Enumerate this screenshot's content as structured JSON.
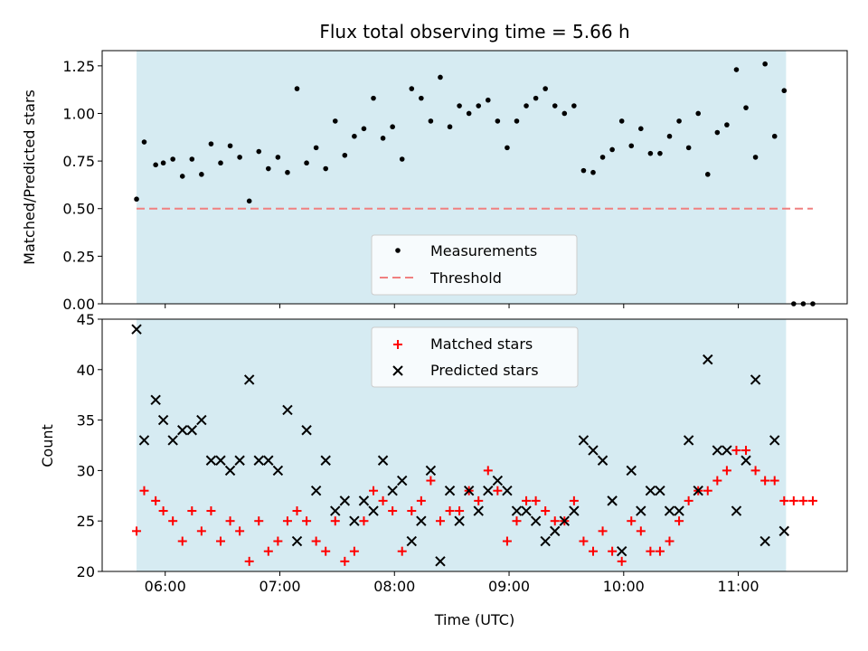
{
  "chart_data": [
    {
      "type": "scatter",
      "title": "Flux total observing time = 5.66 h",
      "xlabel": "",
      "ylabel": "Matched/Predicted stars",
      "ylim": [
        0,
        1.33
      ],
      "yticks": [
        "0.00",
        "0.25",
        "0.50",
        "0.75",
        "1.00",
        "1.25"
      ],
      "xlim": [
        "05:27",
        "11:57"
      ],
      "shaded_interval": [
        "05:45",
        "11:25"
      ],
      "shade_color": "#add8e6",
      "legend_position": "lower-center",
      "series": [
        {
          "name": "Measurements",
          "marker": "dot",
          "color": "#000000",
          "points": [
            [
              "05:45",
              0.55
            ],
            [
              "05:49",
              0.85
            ],
            [
              "05:55",
              0.73
            ],
            [
              "05:59",
              0.74
            ],
            [
              "06:04",
              0.76
            ],
            [
              "06:09",
              0.67
            ],
            [
              "06:14",
              0.76
            ],
            [
              "06:19",
              0.68
            ],
            [
              "06:24",
              0.84
            ],
            [
              "06:29",
              0.74
            ],
            [
              "06:34",
              0.83
            ],
            [
              "06:39",
              0.77
            ],
            [
              "06:44",
              0.54
            ],
            [
              "06:49",
              0.8
            ],
            [
              "06:54",
              0.71
            ],
            [
              "06:59",
              0.77
            ],
            [
              "07:04",
              0.69
            ],
            [
              "07:09",
              1.13
            ],
            [
              "07:14",
              0.74
            ],
            [
              "07:19",
              0.82
            ],
            [
              "07:24",
              0.71
            ],
            [
              "07:29",
              0.96
            ],
            [
              "07:34",
              0.78
            ],
            [
              "07:39",
              0.88
            ],
            [
              "07:44",
              0.92
            ],
            [
              "07:49",
              1.08
            ],
            [
              "07:54",
              0.87
            ],
            [
              "07:59",
              0.93
            ],
            [
              "08:04",
              0.76
            ],
            [
              "08:09",
              1.13
            ],
            [
              "08:14",
              1.08
            ],
            [
              "08:19",
              0.96
            ],
            [
              "08:24",
              1.19
            ],
            [
              "08:29",
              0.93
            ],
            [
              "08:34",
              1.04
            ],
            [
              "08:39",
              1.0
            ],
            [
              "08:44",
              1.04
            ],
            [
              "08:49",
              1.07
            ],
            [
              "08:54",
              0.96
            ],
            [
              "08:59",
              0.82
            ],
            [
              "09:04",
              0.96
            ],
            [
              "09:09",
              1.04
            ],
            [
              "09:14",
              1.08
            ],
            [
              "09:19",
              1.13
            ],
            [
              "09:24",
              1.04
            ],
            [
              "09:29",
              1.0
            ],
            [
              "09:34",
              1.04
            ],
            [
              "09:39",
              0.7
            ],
            [
              "09:44",
              0.69
            ],
            [
              "09:49",
              0.77
            ],
            [
              "09:54",
              0.81
            ],
            [
              "09:59",
              0.96
            ],
            [
              "10:04",
              0.83
            ],
            [
              "10:09",
              0.92
            ],
            [
              "10:14",
              0.79
            ],
            [
              "10:19",
              0.79
            ],
            [
              "10:24",
              0.88
            ],
            [
              "10:29",
              0.96
            ],
            [
              "10:34",
              0.82
            ],
            [
              "10:39",
              1.0
            ],
            [
              "10:44",
              0.68
            ],
            [
              "10:49",
              0.9
            ],
            [
              "10:54",
              0.94
            ],
            [
              "10:59",
              1.23
            ],
            [
              "11:04",
              1.03
            ],
            [
              "11:09",
              0.77
            ],
            [
              "11:14",
              1.26
            ],
            [
              "11:19",
              0.88
            ],
            [
              "11:24",
              1.12
            ],
            [
              "11:29",
              0.0
            ],
            [
              "11:34",
              0.0
            ],
            [
              "11:39",
              0.0
            ]
          ]
        },
        {
          "name": "Threshold",
          "marker": "dashed-line",
          "color": "#f08080",
          "y": 0.5,
          "x_range": [
            "05:45",
            "11:39"
          ]
        }
      ]
    },
    {
      "type": "scatter",
      "title": "",
      "xlabel": "Time (UTC)",
      "ylabel": "Count",
      "ylim": [
        20,
        45
      ],
      "yticks": [
        "20",
        "25",
        "30",
        "35",
        "40",
        "45"
      ],
      "xticks": [
        "06:00",
        "07:00",
        "08:00",
        "09:00",
        "10:00",
        "11:00"
      ],
      "legend_position": "upper-center",
      "series": [
        {
          "name": "Matched stars",
          "marker": "plus",
          "color": "#ff0000",
          "points": [
            [
              "05:45",
              24
            ],
            [
              "05:49",
              28
            ],
            [
              "05:55",
              27
            ],
            [
              "05:59",
              26
            ],
            [
              "06:04",
              25
            ],
            [
              "06:09",
              23
            ],
            [
              "06:14",
              26
            ],
            [
              "06:19",
              24
            ],
            [
              "06:24",
              26
            ],
            [
              "06:29",
              23
            ],
            [
              "06:34",
              25
            ],
            [
              "06:39",
              24
            ],
            [
              "06:44",
              21
            ],
            [
              "06:49",
              25
            ],
            [
              "06:54",
              22
            ],
            [
              "06:59",
              23
            ],
            [
              "07:04",
              25
            ],
            [
              "07:09",
              26
            ],
            [
              "07:14",
              25
            ],
            [
              "07:19",
              23
            ],
            [
              "07:24",
              22
            ],
            [
              "07:29",
              25
            ],
            [
              "07:34",
              21
            ],
            [
              "07:39",
              22
            ],
            [
              "07:44",
              25
            ],
            [
              "07:49",
              28
            ],
            [
              "07:54",
              27
            ],
            [
              "07:59",
              26
            ],
            [
              "08:04",
              22
            ],
            [
              "08:09",
              26
            ],
            [
              "08:14",
              27
            ],
            [
              "08:19",
              29
            ],
            [
              "08:24",
              25
            ],
            [
              "08:29",
              26
            ],
            [
              "08:34",
              26
            ],
            [
              "08:39",
              28
            ],
            [
              "08:44",
              27
            ],
            [
              "08:49",
              30
            ],
            [
              "08:54",
              28
            ],
            [
              "08:59",
              23
            ],
            [
              "09:04",
              25
            ],
            [
              "09:09",
              27
            ],
            [
              "09:14",
              27
            ],
            [
              "09:19",
              26
            ],
            [
              "09:24",
              25
            ],
            [
              "09:29",
              25
            ],
            [
              "09:34",
              27
            ],
            [
              "09:39",
              23
            ],
            [
              "09:44",
              22
            ],
            [
              "09:49",
              24
            ],
            [
              "09:54",
              22
            ],
            [
              "09:59",
              21
            ],
            [
              "10:04",
              25
            ],
            [
              "10:09",
              24
            ],
            [
              "10:14",
              22
            ],
            [
              "10:19",
              22
            ],
            [
              "10:24",
              23
            ],
            [
              "10:29",
              25
            ],
            [
              "10:34",
              27
            ],
            [
              "10:39",
              28
            ],
            [
              "10:44",
              28
            ],
            [
              "10:49",
              29
            ],
            [
              "10:54",
              30
            ],
            [
              "10:59",
              32
            ],
            [
              "11:04",
              32
            ],
            [
              "11:09",
              30
            ],
            [
              "11:14",
              29
            ],
            [
              "11:19",
              29
            ],
            [
              "11:24",
              27
            ],
            [
              "11:29",
              27
            ],
            [
              "11:34",
              27
            ],
            [
              "11:39",
              27
            ]
          ]
        },
        {
          "name": "Predicted stars",
          "marker": "x",
          "color": "#000000",
          "points": [
            [
              "05:45",
              44
            ],
            [
              "05:49",
              33
            ],
            [
              "05:55",
              37
            ],
            [
              "05:59",
              35
            ],
            [
              "06:04",
              33
            ],
            [
              "06:09",
              34
            ],
            [
              "06:14",
              34
            ],
            [
              "06:19",
              35
            ],
            [
              "06:24",
              31
            ],
            [
              "06:29",
              31
            ],
            [
              "06:34",
              30
            ],
            [
              "06:39",
              31
            ],
            [
              "06:44",
              39
            ],
            [
              "06:49",
              31
            ],
            [
              "06:54",
              31
            ],
            [
              "06:59",
              30
            ],
            [
              "07:04",
              36
            ],
            [
              "07:09",
              23
            ],
            [
              "07:14",
              34
            ],
            [
              "07:19",
              28
            ],
            [
              "07:24",
              31
            ],
            [
              "07:29",
              26
            ],
            [
              "07:34",
              27
            ],
            [
              "07:39",
              25
            ],
            [
              "07:44",
              27
            ],
            [
              "07:49",
              26
            ],
            [
              "07:54",
              31
            ],
            [
              "07:59",
              28
            ],
            [
              "08:04",
              29
            ],
            [
              "08:09",
              23
            ],
            [
              "08:14",
              25
            ],
            [
              "08:19",
              30
            ],
            [
              "08:24",
              21
            ],
            [
              "08:29",
              28
            ],
            [
              "08:34",
              25
            ],
            [
              "08:39",
              28
            ],
            [
              "08:44",
              26
            ],
            [
              "08:49",
              28
            ],
            [
              "08:54",
              29
            ],
            [
              "08:59",
              28
            ],
            [
              "09:04",
              26
            ],
            [
              "09:09",
              26
            ],
            [
              "09:14",
              25
            ],
            [
              "09:19",
              23
            ],
            [
              "09:24",
              24
            ],
            [
              "09:29",
              25
            ],
            [
              "09:34",
              26
            ],
            [
              "09:39",
              33
            ],
            [
              "09:44",
              32
            ],
            [
              "09:49",
              31
            ],
            [
              "09:54",
              27
            ],
            [
              "09:59",
              22
            ],
            [
              "10:04",
              30
            ],
            [
              "10:09",
              26
            ],
            [
              "10:14",
              28
            ],
            [
              "10:19",
              28
            ],
            [
              "10:24",
              26
            ],
            [
              "10:29",
              26
            ],
            [
              "10:34",
              33
            ],
            [
              "10:39",
              28
            ],
            [
              "10:44",
              41
            ],
            [
              "10:49",
              32
            ],
            [
              "10:54",
              32
            ],
            [
              "10:59",
              26
            ],
            [
              "11:04",
              31
            ],
            [
              "11:09",
              39
            ],
            [
              "11:14",
              23
            ],
            [
              "11:19",
              33
            ],
            [
              "11:24",
              24
            ]
          ]
        }
      ]
    }
  ]
}
